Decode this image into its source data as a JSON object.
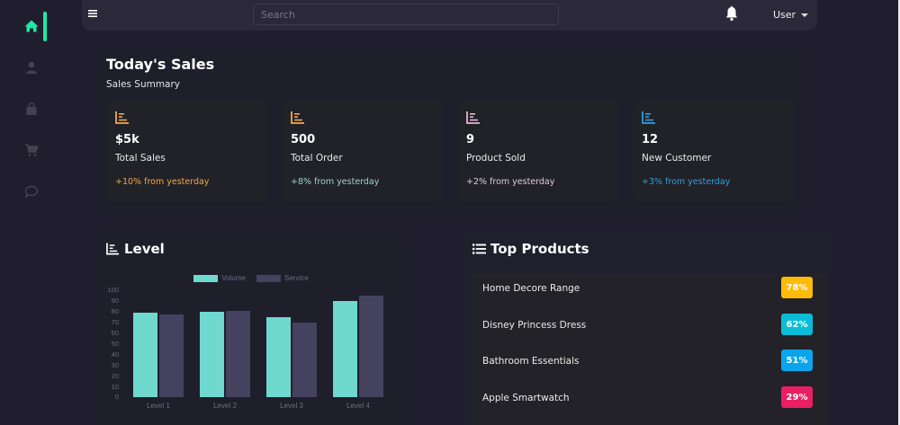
{
  "sidebar": {
    "items": [
      {
        "id": "home",
        "icon": "home-icon",
        "active": true
      },
      {
        "id": "user",
        "icon": "user-icon",
        "active": false
      },
      {
        "id": "shop",
        "icon": "shopping-bag-icon",
        "active": false
      },
      {
        "id": "cart",
        "icon": "cart-icon",
        "active": false
      },
      {
        "id": "chat",
        "icon": "chat-icon",
        "active": false
      }
    ],
    "active_color": "#1de9a6",
    "inactive_color": "#44424f"
  },
  "topbar": {
    "menu_icon": "hamburger-icon",
    "search_placeholder": "Search",
    "notification_icon": "bell-icon",
    "user_label": "User"
  },
  "sales": {
    "title": "Today's Sales",
    "subtitle": "Sales Summary",
    "cards": [
      {
        "value": "$5k",
        "label": "Total Sales",
        "change": "+10% from yesterday",
        "color": "#f2a848"
      },
      {
        "value": "500",
        "label": "Total Order",
        "change": "+8% from yesterday",
        "color": "#f2a848",
        "change_color": "#9fd4c4"
      },
      {
        "value": "9",
        "label": "Product Sold",
        "change": "+2% from yesterday",
        "color": "#e8b6d4",
        "change_color": "#e0c8dc"
      },
      {
        "value": "12",
        "label": "New Customer",
        "change": "+3% from yesterday",
        "color": "#2d9fe0",
        "change_color": "#2d9fe0"
      }
    ]
  },
  "level": {
    "title": "Level",
    "icon": "bar-chart-icon"
  },
  "chart_data": {
    "type": "bar",
    "title": "Level",
    "categories": [
      "Level 1",
      "Level 2",
      "Level 3",
      "Level 4"
    ],
    "series": [
      {
        "name": "Volume",
        "color": "#6fd8cf",
        "values": [
          79,
          80,
          75,
          90
        ]
      },
      {
        "name": "Service",
        "color": "#454260",
        "values": [
          77,
          81,
          70,
          95
        ]
      }
    ],
    "y_ticks": [
      "100",
      "90",
      "80",
      "70",
      "60",
      "50",
      "40",
      "30",
      "20",
      "10",
      "0"
    ],
    "ylim": [
      0,
      100
    ],
    "xlabel": "",
    "ylabel": "",
    "legend_position": "top",
    "grid": false
  },
  "top_products": {
    "title": "Top Products",
    "icon": "list-icon",
    "items": [
      {
        "name": "Home Decore Range",
        "percent": "78%",
        "color": "#ffba0a"
      },
      {
        "name": "Disney Princess Dress",
        "percent": "62%",
        "color": "#0abdd6"
      },
      {
        "name": "Bathroom Essentials",
        "percent": "51%",
        "color": "#0aa5ec"
      },
      {
        "name": "Apple Smartwatch",
        "percent": "29%",
        "color": "#e91e63"
      }
    ]
  }
}
